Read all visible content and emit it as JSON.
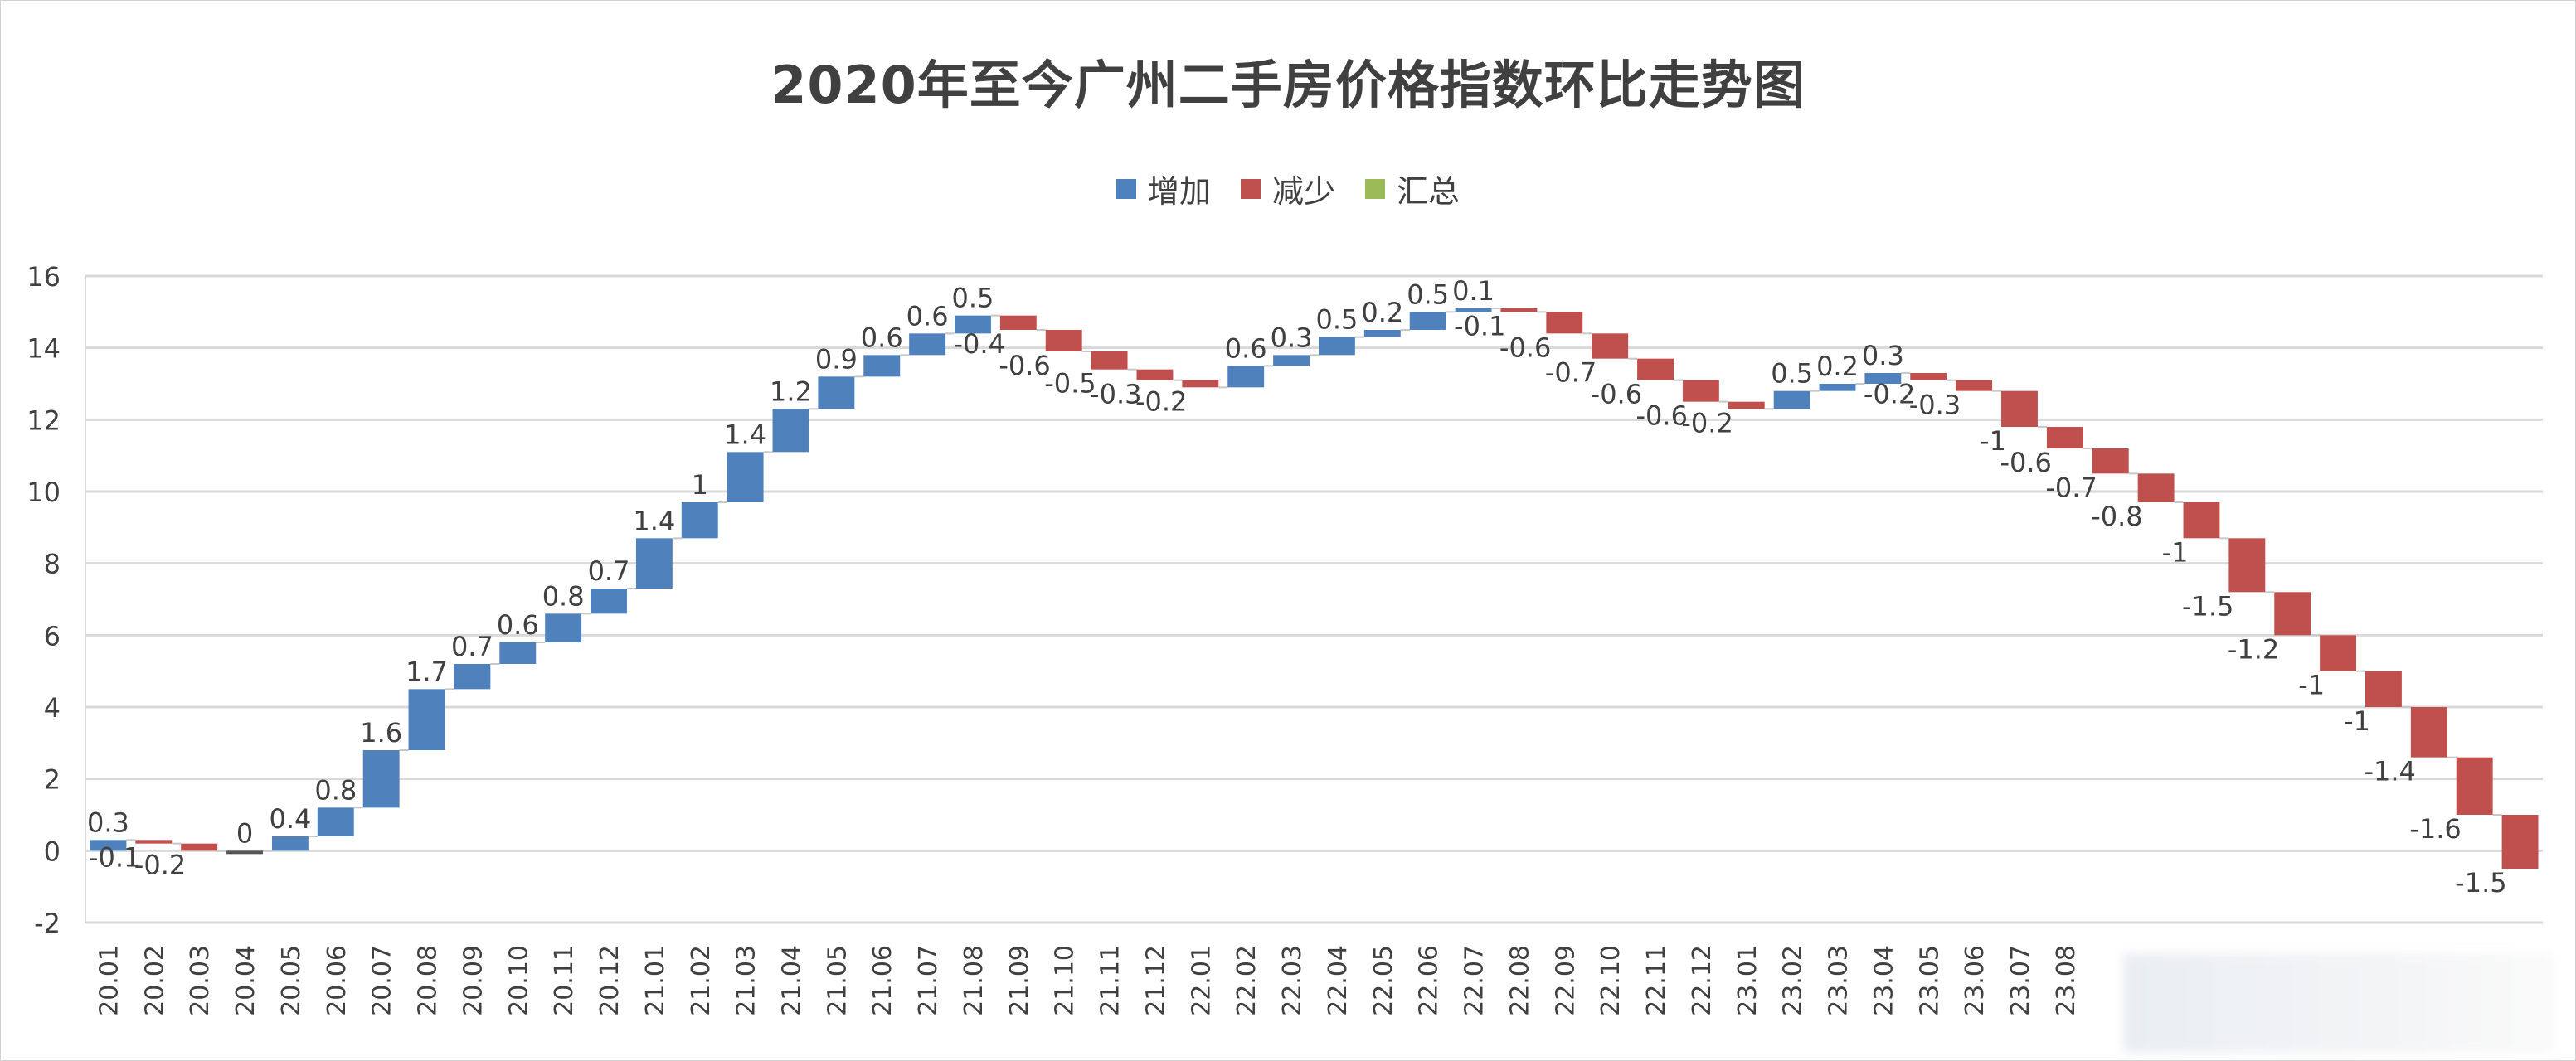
{
  "chart_data": {
    "type": "waterfall",
    "title": "2020年至今广州二手房价格指数环比走势图",
    "legend": [
      {
        "name": "增加",
        "color": "#4f81bd"
      },
      {
        "name": "减少",
        "color": "#c0504d"
      },
      {
        "name": "汇总",
        "color": "#9bbb59"
      }
    ],
    "legend_position": "top",
    "ylim": [
      -2,
      16
    ],
    "yticks": [
      -2,
      0,
      2,
      4,
      6,
      8,
      10,
      12,
      14,
      16
    ],
    "grid": true,
    "categories": [
      "20.01",
      "20.02",
      "20.03",
      "20.04",
      "20.05",
      "20.06",
      "20.07",
      "20.08",
      "20.09",
      "20.10",
      "20.11",
      "20.12",
      "21.01",
      "21.02",
      "21.03",
      "21.04",
      "21.05",
      "21.06",
      "21.07",
      "21.08",
      "21.09",
      "21.10",
      "21.11",
      "21.12",
      "22.01",
      "22.02",
      "22.03",
      "22.04",
      "22.05",
      "22.06",
      "22.07",
      "22.08",
      "22.09",
      "22.10",
      "22.11",
      "22.12",
      "23.01",
      "23.02",
      "23.03",
      "23.04",
      "23.05",
      "23.06",
      "23.07",
      "23.08",
      "",
      "",
      "",
      "",
      "",
      "",
      "",
      "",
      "",
      ""
    ],
    "values": [
      0.3,
      -0.1,
      -0.2,
      0,
      0.4,
      0.8,
      1.6,
      1.7,
      0.7,
      0.6,
      0.8,
      0.7,
      1.4,
      1,
      1.4,
      1.2,
      0.9,
      0.6,
      0.6,
      0.5,
      -0.4,
      -0.6,
      -0.5,
      -0.3,
      -0.2,
      0.6,
      0.3,
      0.5,
      0.2,
      0.5,
      0.1,
      -0.1,
      -0.6,
      -0.7,
      -0.6,
      -0.6,
      -0.2,
      0.5,
      0.2,
      0.3,
      -0.2,
      -0.3,
      -1,
      -0.6,
      -0.7,
      -0.8,
      -1,
      -1.5,
      -1.2,
      -1,
      -1,
      -1.4,
      -1.6,
      -1.5
    ]
  }
}
